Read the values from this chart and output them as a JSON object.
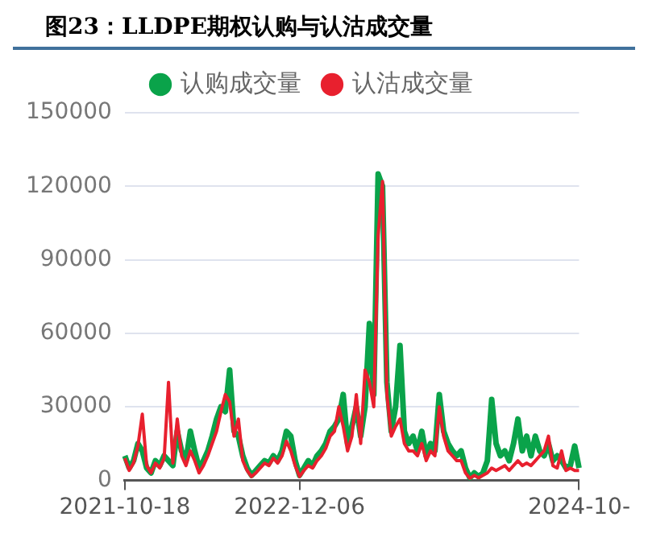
{
  "chart_data": {
    "type": "line",
    "title": "图23：LLDPE期权认购与认沽成交量",
    "categories": [
      "2021-10-18",
      null,
      null,
      null,
      null,
      null,
      null,
      null,
      null,
      null,
      null,
      null,
      null,
      null,
      null,
      null,
      null,
      null,
      null,
      null,
      null,
      null,
      null,
      null,
      null,
      null,
      null,
      null,
      null,
      null,
      null,
      null,
      null,
      null,
      null,
      null,
      null,
      null,
      null,
      null,
      "2022-12-06",
      null,
      null,
      null,
      null,
      null,
      null,
      null,
      null,
      null,
      null,
      null,
      null,
      null,
      null,
      null,
      null,
      null,
      null,
      null,
      null,
      null,
      null,
      null,
      null,
      null,
      null,
      null,
      null,
      null,
      null,
      null,
      null,
      null,
      null,
      null,
      null,
      null,
      null,
      null,
      null,
      null,
      null,
      null,
      null,
      null,
      null,
      null,
      null,
      null,
      null,
      null,
      null,
      null,
      null,
      null,
      null,
      null,
      null,
      null,
      null,
      null,
      null,
      null,
      "2024-10-"
    ],
    "series": [
      {
        "name": "认购成交量",
        "color": "#0aa34a",
        "values": [
          10000,
          5000,
          8000,
          15000,
          12000,
          5000,
          3000,
          8000,
          6000,
          10000,
          8000,
          6000,
          20000,
          12000,
          8000,
          20000,
          12000,
          5000,
          8000,
          12000,
          18000,
          25000,
          30000,
          28000,
          45000,
          20000,
          18000,
          10000,
          5000,
          2000,
          4000,
          6000,
          8000,
          7000,
          10000,
          8000,
          12000,
          20000,
          18000,
          8000,
          2000,
          5000,
          8000,
          6000,
          10000,
          12000,
          15000,
          20000,
          22000,
          25000,
          35000,
          15000,
          22000,
          30000,
          18000,
          30000,
          64000,
          35000,
          125000,
          120000,
          40000,
          20000,
          30000,
          55000,
          20000,
          15000,
          18000,
          12000,
          20000,
          10000,
          15000,
          12000,
          35000,
          20000,
          15000,
          12000,
          10000,
          12000,
          5000,
          1000,
          3000,
          1500,
          3000,
          8000,
          33000,
          15000,
          10000,
          12000,
          8000,
          15000,
          25000,
          12000,
          18000,
          10000,
          18000,
          12000,
          10000,
          15000,
          8000,
          10000,
          8000,
          5000,
          6000,
          14000,
          5000
        ]
      },
      {
        "name": "认沽成交量",
        "color": "#e8202e",
        "values": [
          9000,
          4000,
          7000,
          14000,
          27000,
          6000,
          3000,
          7000,
          5000,
          9000,
          40000,
          7000,
          25000,
          10000,
          6000,
          12000,
          8000,
          3000,
          6000,
          10000,
          15000,
          20000,
          28000,
          35000,
          32000,
          18000,
          25000,
          8000,
          4000,
          1500,
          3000,
          5000,
          7000,
          6000,
          9000,
          7000,
          10000,
          16000,
          12000,
          6000,
          1500,
          4000,
          6000,
          5000,
          8000,
          10000,
          13000,
          18000,
          20000,
          30000,
          22000,
          12000,
          18000,
          35000,
          15000,
          45000,
          40000,
          30000,
          100000,
          122000,
          35000,
          18000,
          22000,
          25000,
          15000,
          12000,
          12000,
          10000,
          15000,
          8000,
          12000,
          10000,
          30000,
          18000,
          12000,
          10000,
          8000,
          8000,
          3000,
          800,
          2000,
          1000,
          2000,
          3000,
          5000,
          4000,
          5000,
          6000,
          4000,
          6000,
          8000,
          6000,
          7000,
          6000,
          8000,
          10000,
          12000,
          18000,
          6000,
          5000,
          12000,
          4000,
          5000,
          4000,
          4000
        ]
      }
    ],
    "ylim": [
      0,
      150000
    ],
    "yticks": [
      0,
      30000,
      60000,
      90000,
      120000,
      150000
    ],
    "grid": "y",
    "legend": "top",
    "marker": "none",
    "line_style": "solid"
  }
}
